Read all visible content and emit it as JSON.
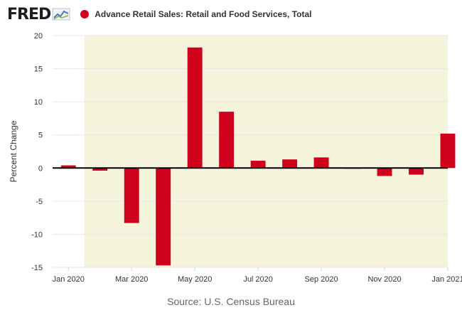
{
  "header": {
    "logo": "FRED",
    "logo_icon": "chart-line-icon"
  },
  "colors": {
    "series": "#d0021b",
    "recession": "#f5f3dc",
    "grid": "#e6e6e6",
    "axis_text": "#333333"
  },
  "chart_data": {
    "type": "bar",
    "title": "Advance Retail Sales: Retail and Food Services, Total",
    "ylabel": "Percent Change",
    "xlabel": "",
    "ylim": [
      -15,
      20
    ],
    "yticks": [
      -15,
      -10,
      -5,
      0,
      5,
      10,
      15,
      20
    ],
    "x": [
      "2020-01",
      "2020-02",
      "2020-03",
      "2020-04",
      "2020-05",
      "2020-06",
      "2020-07",
      "2020-08",
      "2020-09",
      "2020-10",
      "2020-11",
      "2020-12",
      "2021-01"
    ],
    "xtick_labels": [
      {
        "date": "2020-01",
        "label": "Jan 2020"
      },
      {
        "date": "2020-03",
        "label": "Mar 2020"
      },
      {
        "date": "2020-05",
        "label": "May 2020"
      },
      {
        "date": "2020-07",
        "label": "Jul 2020"
      },
      {
        "date": "2020-09",
        "label": "Sep 2020"
      },
      {
        "date": "2020-11",
        "label": "Nov 2020"
      },
      {
        "date": "2021-01",
        "label": "Jan 2021"
      }
    ],
    "series": [
      {
        "name": "Advance Retail Sales: Retail and Food Services, Total",
        "values": [
          0.4,
          -0.4,
          -8.3,
          -14.7,
          18.2,
          8.5,
          1.1,
          1.3,
          1.6,
          -0.1,
          -1.2,
          -1.0,
          5.2
        ]
      }
    ],
    "recession_shading": {
      "start": "2020-02",
      "end": "2021-01"
    },
    "grid": true
  },
  "source": "Source: U.S. Census Bureau"
}
